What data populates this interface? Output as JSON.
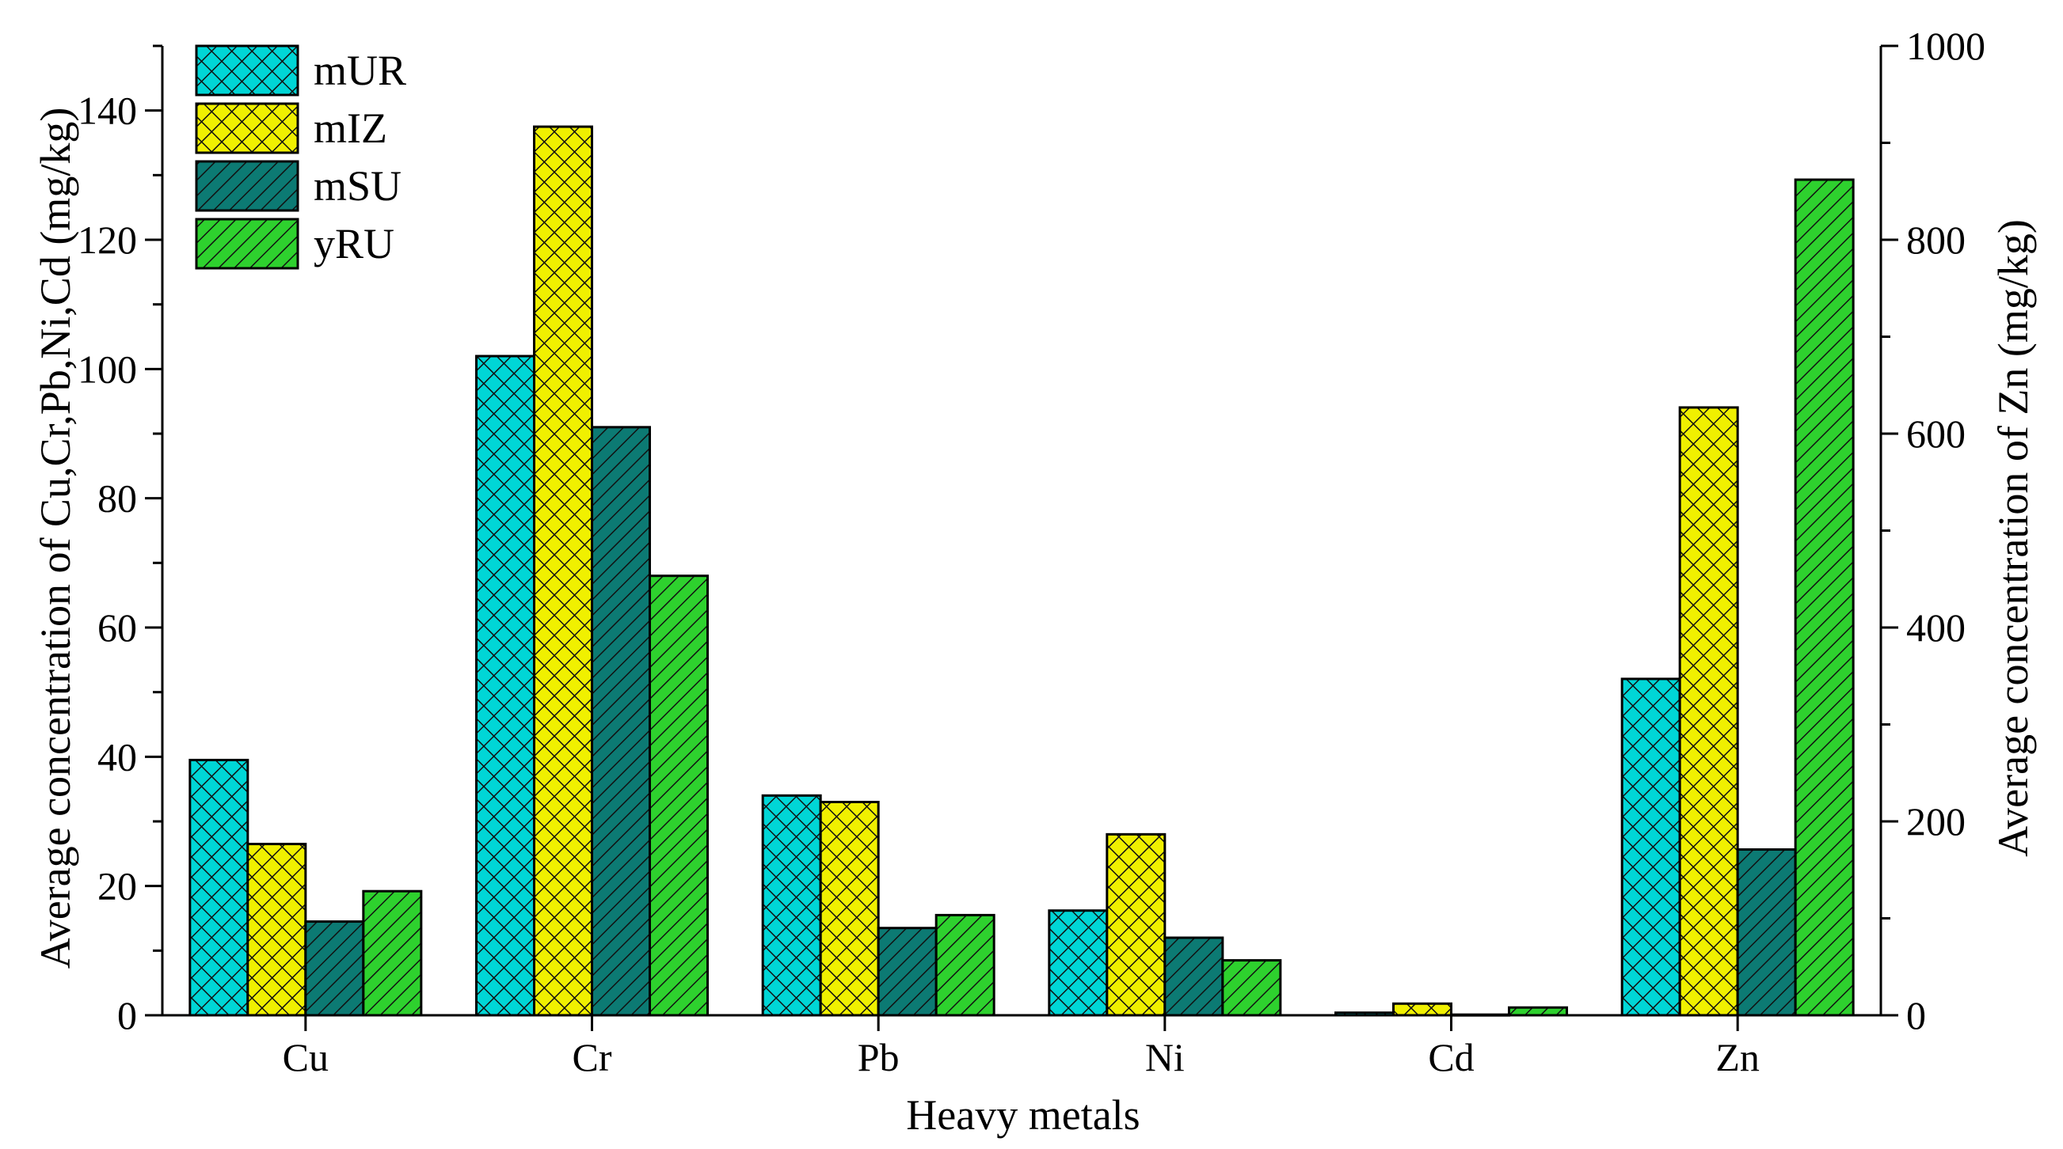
{
  "chart_data": {
    "type": "bar",
    "categories": [
      "Cu",
      "Cr",
      "Pb",
      "Ni",
      "Cd",
      "Zn"
    ],
    "series": [
      {
        "name": "mUR",
        "values": [
          39.5,
          102,
          34,
          16.2,
          0.4,
          347
        ],
        "color": "#00d6d6"
      },
      {
        "name": "mIZ",
        "values": [
          26.5,
          137.5,
          33,
          28,
          1.8,
          627
        ],
        "color": "#f0f000"
      },
      {
        "name": "mSU",
        "values": [
          14.5,
          91,
          13.5,
          12,
          0.1,
          171
        ],
        "color": "#0c7a73"
      },
      {
        "name": "yRU",
        "values": [
          19.2,
          68,
          15.5,
          8.5,
          1.2,
          862
        ],
        "color": "#2ed12e"
      }
    ],
    "xlabel": "Heavy metals",
    "ylabel": "Average concentration of Cu,Cr,Pb,Ni,Cd (mg/kg)",
    "y2label": "Average concentration of  Zn (mg/kg)",
    "ylim": [
      0,
      150
    ],
    "y2lim": [
      0,
      1000
    ],
    "yticks": [
      "0",
      "20",
      "40",
      "60",
      "80",
      "100",
      "120",
      "140"
    ],
    "y2ticks": [
      "0",
      "200",
      "400",
      "600",
      "800",
      "1000"
    ],
    "secondary_axis_category": "Zn",
    "grid": false,
    "legend": "top-left"
  }
}
